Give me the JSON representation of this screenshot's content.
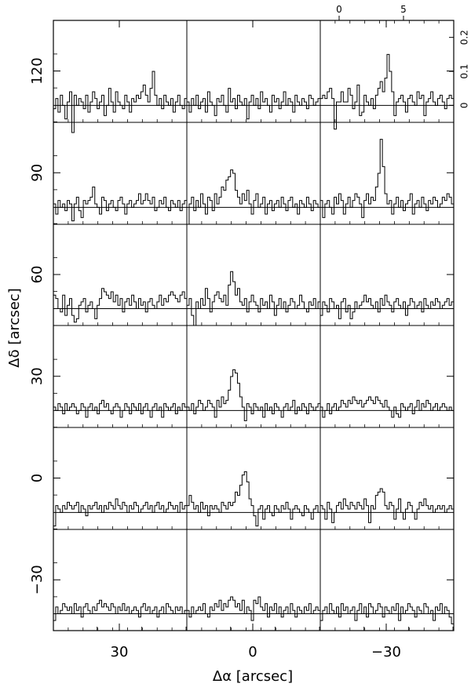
{
  "chart_data": {
    "type": "line",
    "layout": "3 columns x 6 rows grid of spectra",
    "xlabel": "Δα  [arcsec]",
    "ylabel": "Δδ  [arcsec]",
    "xticks": [
      {
        "value": 30,
        "label": "30"
      },
      {
        "value": 0,
        "label": "0"
      },
      {
        "value": -30,
        "label": "−30"
      }
    ],
    "yticks": [
      {
        "value": 120,
        "label": "120"
      },
      {
        "value": 90,
        "label": "90"
      },
      {
        "value": 60,
        "label": "60"
      },
      {
        "value": 30,
        "label": "30"
      },
      {
        "value": 0,
        "label": "0"
      },
      {
        "value": -30,
        "label": "−30"
      }
    ],
    "inset_axis": {
      "velocity_ticks": [
        {
          "value": 0,
          "label": "0"
        },
        {
          "value": 5,
          "label": "5"
        }
      ],
      "intensity_ticks": [
        {
          "value": 0,
          "label": "0"
        },
        {
          "value": 0.1,
          "label": "0.1"
        },
        {
          "value": 0.2,
          "label": "0.2"
        }
      ],
      "intensity_range": [
        -0.05,
        0.25
      ]
    },
    "panels": [
      {
        "row": 0,
        "col": 0,
        "values": [
          -0.01,
          0.02,
          -0.02,
          0.03,
          0,
          -0.04,
          0.01,
          0.04,
          -0.08,
          0.03,
          0,
          0.02,
          0.01,
          -0.01,
          0.03,
          -0.02,
          0.01,
          0.04,
          0.02,
          -0.01,
          0.01,
          0.03,
          -0.03,
          0,
          0.05,
          0.01,
          -0.02,
          0.04,
          0.01,
          0,
          -0.01,
          0.03,
          0.01,
          -0.02,
          0.02,
          0.01,
          0.03,
          0.02,
          0.04,
          0.06,
          0.03,
          0.01,
          0.05,
          0.1,
          0.03,
          0,
          0.02,
          -0.01,
          0.03,
          0.01,
          0,
          0.02,
          -0.02,
          0.01,
          0.03,
          0,
          -0.01,
          0.02
        ]
      },
      {
        "row": 0,
        "col": 1,
        "values": [
          0.01,
          -0.02,
          0.02,
          0,
          0.03,
          -0.01,
          0.01,
          0.02,
          -0.02,
          0.04,
          0.01,
          0,
          -0.03,
          0.02,
          0.01,
          0.03,
          0,
          -0.02,
          0.05,
          0.01,
          0.02,
          -0.01,
          0.03,
          0.01,
          0,
          0.02,
          -0.04,
          0.01,
          0.03,
          0,
          0.02,
          -0.01,
          0.04,
          0.01,
          0.02,
          0,
          -0.02,
          0.03,
          0.01,
          0.02,
          -0.01,
          0.01,
          0.04,
          0,
          0.02,
          0.01,
          -0.02,
          0.03,
          0.01,
          0,
          0.02,
          0.01,
          -0.01,
          0.03,
          0.02,
          0,
          0.01,
          0.02
        ]
      },
      {
        "row": 0,
        "col": 2,
        "values": [
          0.02,
          0.03,
          0.02,
          0.04,
          0.05,
          0.02,
          -0.07,
          0.01,
          0.01,
          0.04,
          0.01,
          0.01,
          0.05,
          0.03,
          -0.01,
          0.01,
          0.06,
          -0.03,
          -0.02,
          0.03,
          0.01,
          0,
          0.02,
          -0.01,
          0.03,
          0.05,
          0.07,
          0.04,
          0.08,
          0.15,
          0.1,
          0.04,
          -0.03,
          0.01,
          0.02,
          0.03,
          0.01,
          -0.02,
          0.02,
          0.03,
          0.01,
          0,
          0.04,
          0.02,
          0.03,
          -0.03,
          0.01,
          0.02,
          0.04,
          0.01,
          0,
          0.02,
          0.03,
          0.01,
          -0.01,
          0.02,
          0.03,
          0.02
        ]
      },
      {
        "row": 1,
        "col": 0,
        "values": [
          0.01,
          -0.02,
          0.02,
          0,
          0.01,
          -0.01,
          0.02,
          0.01,
          -0.04,
          0.01,
          0.03,
          -0.01,
          -0.03,
          0.02,
          0.01,
          0.02,
          0.03,
          0.06,
          0.01,
          0,
          -0.02,
          0.03,
          0.02,
          -0.01,
          0.01,
          0.02,
          0,
          -0.01,
          0.02,
          0.03,
          0.01,
          -0.02,
          0.01,
          0.02,
          0,
          0.01,
          0.02,
          0.04,
          0.01,
          0.02,
          0.04,
          0.02,
          0.01,
          0.03,
          -0.01,
          0,
          0.02,
          0.01,
          0.03,
          0,
          -0.01,
          0.02,
          0.01,
          0,
          0.02,
          -0.01,
          0.01,
          0.02
        ]
      },
      {
        "row": 1,
        "col": 1,
        "values": [
          -0.05,
          0.01,
          0.03,
          -0.01,
          0.02,
          0,
          0.04,
          0.01,
          -0.02,
          0.03,
          0.02,
          -0.01,
          0.04,
          0.01,
          0.03,
          0.06,
          0.05,
          0.08,
          0.09,
          0.11,
          0.1,
          0.05,
          0.03,
          0.01,
          0.04,
          0.02,
          0.05,
          0.01,
          -0.02,
          0.02,
          0.04,
          0,
          0.01,
          0.03,
          -0.02,
          0.01,
          0.02,
          -0.01,
          0.01,
          0.02,
          0,
          0.03,
          0.01,
          -0.01,
          0.02,
          0.03,
          0,
          0.01,
          -0.02,
          0.02,
          0.01,
          0,
          0.03,
          0.01,
          -0.01,
          0.02,
          0.01,
          0
        ]
      },
      {
        "row": 1,
        "col": 2,
        "values": [
          0.02,
          -0.03,
          0.01,
          0.02,
          0,
          -0.02,
          0.03,
          0.01,
          0.04,
          0.02,
          -0.02,
          0.01,
          0.03,
          0,
          0.02,
          0.04,
          0.03,
          0.01,
          -0.03,
          0.02,
          0.04,
          0.01,
          0.03,
          0.02,
          0.06,
          0.1,
          0.2,
          0.12,
          0.04,
          0.01,
          0.02,
          -0.02,
          0.01,
          0.03,
          0,
          0.02,
          -0.01,
          0.01,
          0.02,
          0.04,
          -0.02,
          0.01,
          0.02,
          0,
          0.03,
          0.01,
          -0.01,
          0.02,
          0.01,
          0.03,
          0.02,
          0,
          0.01,
          0.03,
          0.02,
          0.04,
          0.03,
          0.01
        ]
      },
      {
        "row": 2,
        "col": 0,
        "values": [
          0.04,
          0.03,
          0,
          -0.01,
          0.04,
          -0.02,
          0.01,
          0.03,
          -0.02,
          -0.04,
          -0.03,
          0.01,
          0.02,
          0.03,
          -0.01,
          0.01,
          0.02,
          0,
          -0.03,
          0.01,
          0.03,
          0.06,
          0.05,
          0.04,
          0.03,
          0.05,
          0.02,
          0.04,
          0.01,
          0.03,
          -0.01,
          0.02,
          0.03,
          0.01,
          0.04,
          0.02,
          0,
          0.03,
          0.01,
          0.02,
          -0.01,
          0.02,
          0.03,
          0.01,
          0,
          0.02,
          0.04,
          0.01,
          0.03,
          0.02,
          0.04,
          0.05,
          0.04,
          0.03,
          0.02,
          0.04,
          0.05,
          0.03
        ]
      },
      {
        "row": 2,
        "col": 1,
        "values": [
          0.01,
          0.03,
          -0.02,
          -0.05,
          0.02,
          0,
          0.03,
          0.01,
          0.06,
          0.03,
          -0.01,
          0.02,
          0.04,
          0.05,
          0.03,
          0.02,
          0.04,
          0.01,
          0.07,
          0.11,
          0.08,
          0.04,
          0.06,
          0.02,
          0.01,
          0.03,
          -0.01,
          0.02,
          0.04,
          0.02,
          0.01,
          -0.01,
          0.03,
          0.01,
          0.02,
          0,
          0.04,
          0.02,
          -0.02,
          0.01,
          0.03,
          0,
          0.02,
          -0.01,
          0.01,
          0.03,
          0.02,
          0,
          0.01,
          0.04,
          0.02,
          0,
          -0.01,
          0.02,
          0.01,
          0.03,
          0,
          0.02
        ]
      },
      {
        "row": 2,
        "col": 2,
        "values": [
          -0.02,
          0.02,
          0.01,
          -0.01,
          0.03,
          0.02,
          0,
          0.01,
          -0.03,
          0.02,
          0.03,
          -0.01,
          0.01,
          -0.03,
          -0.01,
          0.02,
          0,
          0.01,
          0.02,
          0.04,
          0.02,
          0.03,
          0.01,
          0,
          0.02,
          -0.01,
          0.03,
          0.01,
          0.04,
          0.02,
          0.01,
          -0.01,
          0.02,
          0.03,
          0.01,
          0,
          0.02,
          -0.02,
          0.01,
          0.03,
          0.02,
          0,
          0.01,
          0.02,
          -0.01,
          0.03,
          0.01,
          0,
          0.02,
          0.01,
          0.03,
          0.02,
          0,
          0.01,
          0.02,
          0.03,
          0.01,
          0.02
        ]
      },
      {
        "row": 3,
        "col": 0,
        "values": [
          0.01,
          0,
          0.02,
          0.01,
          -0.01,
          0.02,
          0,
          0.01,
          0.02,
          0.01,
          -0.01,
          0,
          0.02,
          0.01,
          -0.02,
          0.01,
          0.02,
          0,
          0.01,
          -0.01,
          0.02,
          0.03,
          0.01,
          0.02,
          0,
          -0.01,
          0.01,
          0.02,
          0.01,
          -0.02,
          0,
          0.02,
          0.01,
          -0.01,
          0.02,
          0.01,
          0,
          0.02,
          -0.01,
          0.01,
          0.02,
          0,
          -0.02,
          0.01,
          0.02,
          0,
          0.01,
          -0.02,
          0.02,
          0.01,
          0,
          0.01,
          0.02,
          -0.01,
          0.01,
          0,
          0.02,
          0.01
        ]
      },
      {
        "row": 3,
        "col": 1,
        "values": [
          0.01,
          0,
          0.02,
          -0.01,
          0.01,
          0.03,
          0.02,
          0,
          0.01,
          0.03,
          0.02,
          0.01,
          -0.02,
          0.03,
          0.01,
          0.04,
          0.02,
          0.03,
          0.06,
          0.1,
          0.12,
          0.11,
          0.08,
          0.04,
          0.01,
          -0.03,
          0.02,
          0.01,
          -0.01,
          0.02,
          0.01,
          0,
          0.01,
          -0.02,
          0.02,
          0,
          0.01,
          -0.01,
          0.02,
          0.01,
          0,
          -0.02,
          0.01,
          0.02,
          0,
          0.01,
          0.03,
          -0.01,
          0.01,
          0,
          0.02,
          0.01,
          -0.01,
          0.02,
          0.01,
          0,
          0.01,
          0.02
        ]
      },
      {
        "row": 3,
        "col": 2,
        "values": [
          0.01,
          -0.02,
          0,
          0.02,
          -0.01,
          0.01,
          0.02,
          0,
          0.01,
          0.03,
          0.02,
          0.01,
          0.03,
          0.02,
          0.04,
          0.03,
          0.02,
          0.03,
          0.01,
          0.02,
          0.03,
          0.04,
          0.03,
          0.02,
          0.04,
          0.03,
          0.02,
          0.01,
          0.03,
          0.01,
          0,
          -0.02,
          0.01,
          -0.01,
          -0.02,
          0.02,
          0.01,
          0,
          0.01,
          0.02,
          -0.01,
          0.01,
          0.03,
          0,
          0.02,
          0.01,
          0.03,
          0.02,
          0,
          0.01,
          0.02,
          0,
          0.01,
          0.02,
          0.01,
          0,
          0.01,
          0
        ]
      },
      {
        "row": 4,
        "col": 0,
        "values": [
          -0.04,
          0.02,
          0.01,
          0,
          0.02,
          0.01,
          0.03,
          0.02,
          0.01,
          0.02,
          0.03,
          0,
          0.02,
          0.01,
          -0.01,
          0.02,
          0.01,
          0.02,
          0.03,
          0.01,
          0.02,
          0,
          0.02,
          0.01,
          0.03,
          0.02,
          0.01,
          0.04,
          0.02,
          0.01,
          0.03,
          0.02,
          0,
          0.02,
          0.01,
          0.03,
          0.02,
          0,
          0.01,
          0.02,
          0.03,
          0.01,
          0.02,
          0,
          0.02,
          0.03,
          0.01,
          0.02,
          0,
          0.01,
          0.03,
          0.02,
          0.01,
          0.02,
          0,
          0.03,
          0.01,
          0.02
        ]
      },
      {
        "row": 4,
        "col": 1,
        "values": [
          0.02,
          0.05,
          0.03,
          0.01,
          0.02,
          0,
          0.03,
          0.01,
          0.02,
          -0.01,
          0.02,
          0.01,
          0.02,
          0.01,
          0,
          0.03,
          0.02,
          0.01,
          0.03,
          0.02,
          0.03,
          0.06,
          0.05,
          0.08,
          0.11,
          0.12,
          0.09,
          0.04,
          0.02,
          -0.01,
          -0.04,
          0.01,
          0.02,
          -0.02,
          0.01,
          0.02,
          0,
          -0.01,
          0.02,
          0.01,
          0,
          0.02,
          0.01,
          0.03,
          0.01,
          -0.02,
          0.01,
          0.02,
          0.01,
          0,
          -0.01,
          0.02,
          0.01,
          0,
          -0.02,
          0.01,
          0.02,
          0
        ]
      },
      {
        "row": 4,
        "col": 2,
        "values": [
          0.02,
          0.01,
          -0.02,
          0.03,
          0.01,
          -0.03,
          0,
          0.02,
          0.03,
          0.01,
          0.04,
          0.02,
          0.01,
          0.03,
          0.02,
          0.01,
          0.03,
          0.02,
          0.01,
          0.04,
          0.02,
          -0.03,
          0.02,
          0.01,
          0.05,
          0.06,
          0.07,
          0.06,
          0.02,
          0.01,
          0.03,
          0.02,
          -0.02,
          0.01,
          0.04,
          0,
          -0.02,
          0.01,
          0.03,
          0.02,
          0,
          -0.02,
          0.01,
          0.03,
          0.02,
          0.04,
          0.02,
          0.01,
          0.02,
          0,
          0.01,
          0.02,
          0.01,
          0.02,
          0,
          0.01,
          0.02,
          0.01
        ]
      },
      {
        "row": 5,
        "col": 0,
        "values": [
          -0.02,
          0.02,
          0,
          0.01,
          0.03,
          0.02,
          0.01,
          0.02,
          0,
          0.03,
          0.01,
          0.02,
          -0.01,
          0.02,
          0.03,
          0.01,
          0,
          0.02,
          0.01,
          0.03,
          0.04,
          0.02,
          0.03,
          0.02,
          0.01,
          0.03,
          0.02,
          0,
          0.02,
          0.01,
          0.03,
          0.01,
          0.02,
          0,
          0.01,
          0.02,
          0.01,
          -0.01,
          0.02,
          0.03,
          0.01,
          0.02,
          0,
          0.01,
          0.02,
          -0.01,
          0.01,
          0.02,
          0,
          0.03,
          0.02,
          0.01,
          0,
          0.02,
          0.01,
          0.02,
          0,
          0.01
        ]
      },
      {
        "row": 5,
        "col": 1,
        "values": [
          0.01,
          -0.01,
          0.02,
          0,
          0.01,
          0.02,
          0.01,
          0.03,
          0,
          -0.01,
          0.02,
          0.01,
          0.03,
          0.02,
          0.04,
          0.01,
          0.03,
          0.02,
          0.04,
          0.05,
          0.04,
          0.02,
          0.03,
          0.01,
          0.04,
          0,
          0.02,
          0.01,
          -0.02,
          0.04,
          0.03,
          0.05,
          0.02,
          0.01,
          0.03,
          -0.01,
          0.02,
          0.01,
          0.03,
          0,
          0.02,
          -0.01,
          0.01,
          0.02,
          0,
          0.03,
          0.01,
          -0.01,
          0.02,
          0.01,
          0,
          0.02,
          0.01,
          0.03,
          0,
          0.01,
          0.02,
          0.01
        ]
      },
      {
        "row": 5,
        "col": 2,
        "values": [
          -0.02,
          0.01,
          0.02,
          0,
          0.03,
          0.01,
          0,
          0.02,
          -0.01,
          0.03,
          0.01,
          0.02,
          0,
          0.01,
          0.02,
          -0.02,
          0.01,
          0.03,
          0,
          0.02,
          -0.01,
          0.03,
          0.02,
          0,
          0.01,
          0.03,
          0.02,
          -0.01,
          0.02,
          0.01,
          0,
          0.02,
          0.01,
          0.03,
          -0.02,
          0.02,
          0,
          0.01,
          0.03,
          0.02,
          0.01,
          -0.01,
          0.02,
          0.01,
          0,
          0.03,
          0.02,
          0,
          0.01,
          -0.02,
          0.02,
          0.01,
          0.03,
          0,
          0.02,
          0.01,
          -0.01,
          -0.03
        ]
      }
    ]
  }
}
